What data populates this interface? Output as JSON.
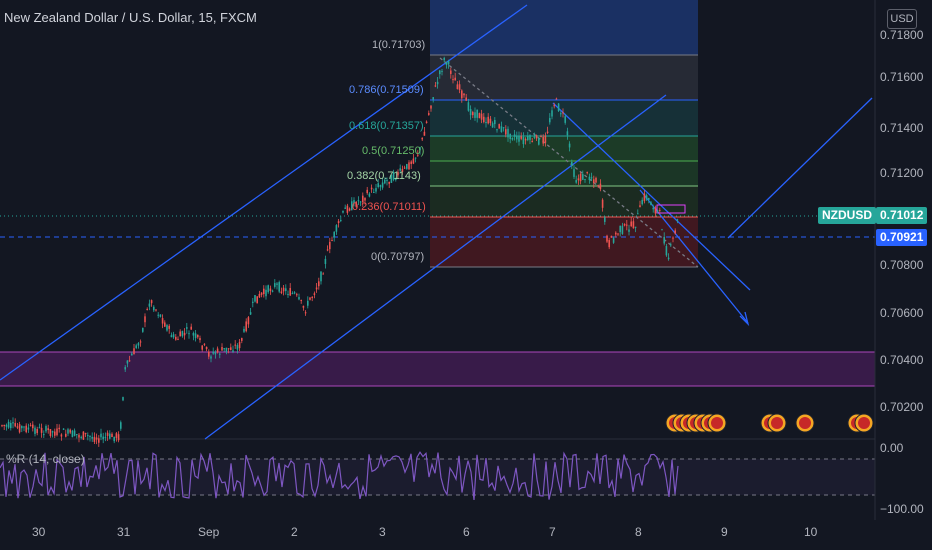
{
  "header": {
    "symbol_title": "New Zealand Dollar / U.S. Dollar, 15, FXCM",
    "currency_badge": "USD"
  },
  "price_axis": {
    "labels": [
      "0.71800",
      "0.71600",
      "0.71400",
      "0.71200",
      "0.70800",
      "0.70600",
      "0.70400",
      "0.70200"
    ],
    "symbol_tag": "NZDUSD",
    "last_price": "0.71012",
    "crosshair_price": "0.70921"
  },
  "time_axis": {
    "labels": [
      "30",
      "31",
      "Sep",
      "2",
      "3",
      "6",
      "7",
      "8",
      "9",
      "10"
    ]
  },
  "fib": {
    "levels": [
      {
        "label": "1(0.71703)"
      },
      {
        "label": "0.786(0.71509)"
      },
      {
        "label": "0.618(0.71357)"
      },
      {
        "label": "0.5(0.71250)"
      },
      {
        "label": "0.382(0.71143)"
      },
      {
        "label": "0.236(0.71011)"
      },
      {
        "label": "0(0.70797)"
      }
    ]
  },
  "indicator": {
    "label": "%R (14, close)",
    "axis_labels": [
      "0.00",
      "−100.00"
    ]
  },
  "colors": {
    "background": "#131722",
    "up": "#26a69a",
    "down": "#ef5350",
    "trendline": "#2962ff",
    "zone": "#9c27b0",
    "williams": "#7e57c2",
    "tag_symbol": "#26a69a",
    "tag_crosshair": "#2962ff"
  }
}
